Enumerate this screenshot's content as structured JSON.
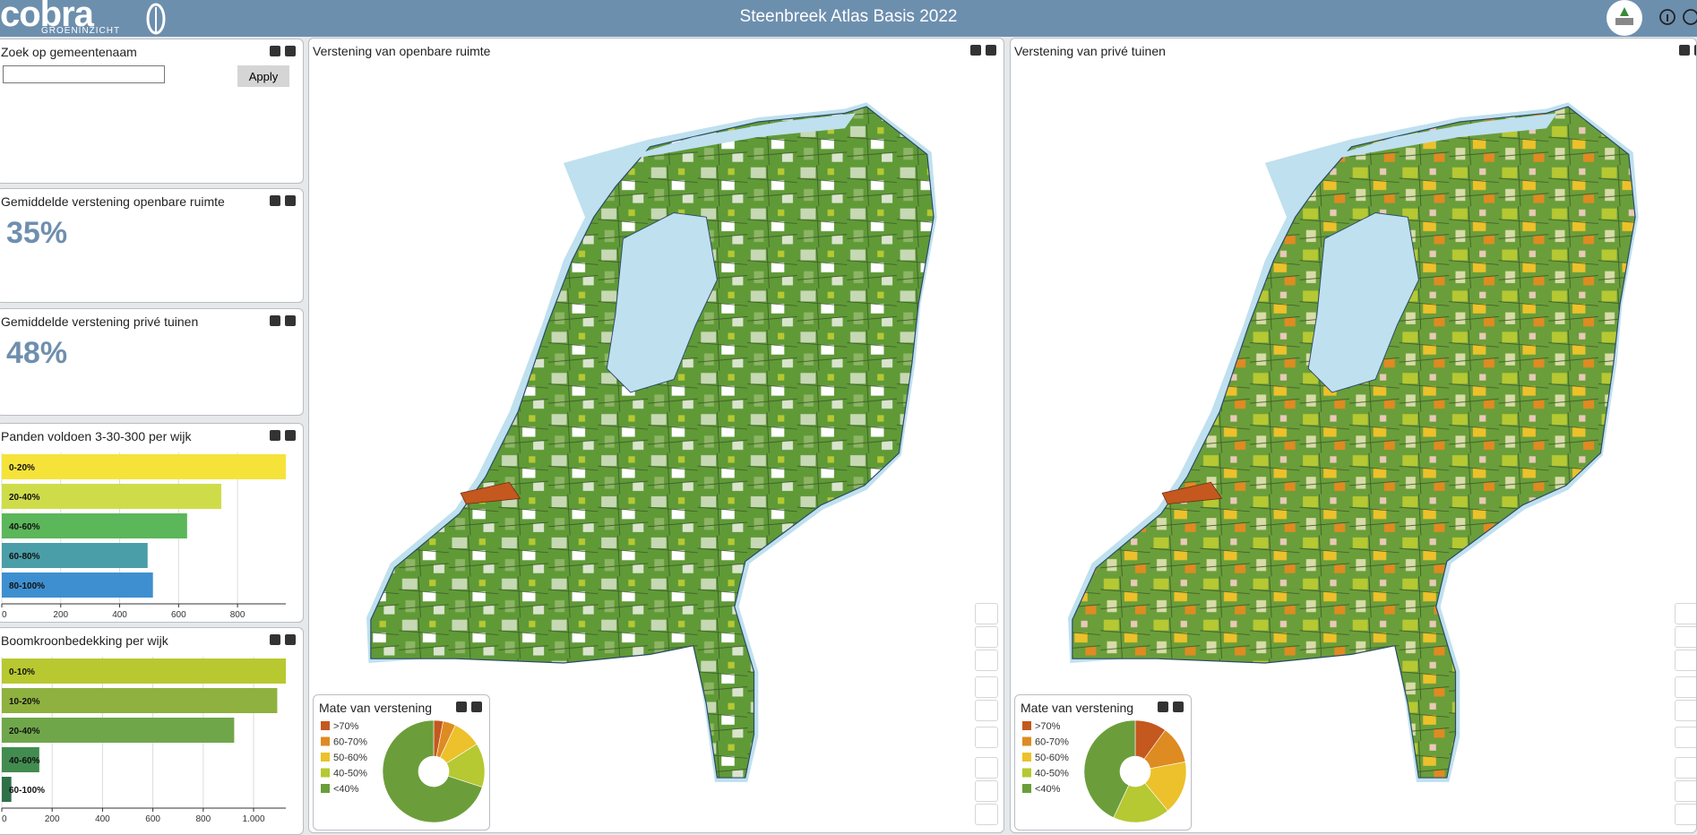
{
  "header": {
    "logo": "cobra",
    "logo_sub": "GROENINZICHT",
    "title": "Steenbreek Atlas Basis 2022"
  },
  "search": {
    "title": "Zoek op gemeentenaam",
    "button": "Apply"
  },
  "kpis": [
    {
      "title": "Gemiddelde verstening openbare ruimte",
      "value": "35%"
    },
    {
      "title": "Gemiddelde verstening privé tuinen",
      "value": "48%"
    }
  ],
  "maps": [
    {
      "title": "Verstening van openbare ruimte"
    },
    {
      "title": "Verstening van privé tuinen"
    }
  ],
  "chart_data": [
    {
      "type": "bar",
      "title": "Panden voldoen 3-30-300 per wijk",
      "categories": [
        "0-20%",
        "20-40%",
        "40-60%",
        "60-80%",
        "80-100%"
      ],
      "values": [
        964,
        745,
        629,
        495,
        513
      ],
      "colors": [
        "#f5e33a",
        "#cfdc4a",
        "#5cb65a",
        "#4a9ea8",
        "#3e8fd0"
      ],
      "xlim": [
        0,
        964
      ],
      "xticks": [
        0,
        200,
        400,
        600,
        800
      ],
      "grid": true
    },
    {
      "type": "bar",
      "title": "Boomkroonbedekking per wijk",
      "categories": [
        "0-10%",
        "10-20%",
        "20-40%",
        "40-60%",
        "60-100%"
      ],
      "values": [
        1128,
        1094,
        923,
        149,
        38
      ],
      "colors": [
        "#b8c830",
        "#8fb13f",
        "#70a64a",
        "#428c4f",
        "#2f7048"
      ],
      "xlim": [
        0,
        1128
      ],
      "xticks": [
        0,
        200,
        400,
        600,
        800,
        {
          "value": 1000,
          "label": "1.000"
        }
      ],
      "grid": true
    },
    {
      "type": "pie",
      "title": "Mate van verstening",
      "categories": [
        ">70%",
        "60-70%",
        "50-60%",
        "40-50%",
        "<40%"
      ],
      "values": [
        3,
        4,
        9,
        14,
        70
      ],
      "colors": [
        "#c4581f",
        "#de8b22",
        "#ecc12b",
        "#b6c832",
        "#6b9e3a"
      ]
    },
    {
      "type": "pie",
      "title": "Mate van verstening",
      "categories": [
        ">70%",
        "60-70%",
        "50-60%",
        "40-50%",
        "<40%"
      ],
      "values": [
        10,
        12,
        17,
        18,
        43
      ],
      "colors": [
        "#c4581f",
        "#de8b22",
        "#ecc12b",
        "#b6c832",
        "#6b9e3a"
      ]
    }
  ]
}
